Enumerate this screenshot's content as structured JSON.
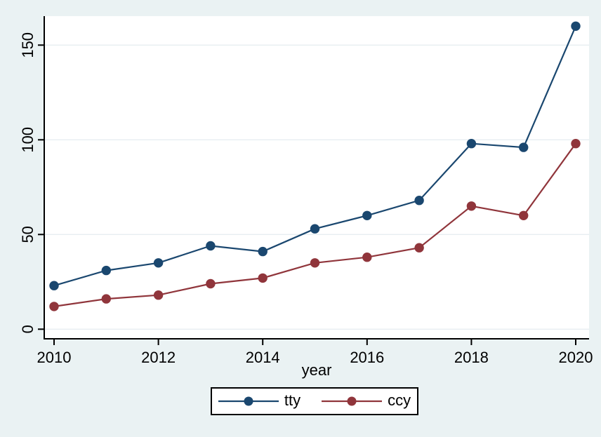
{
  "figure": {
    "background_color": "#eaf2f3",
    "plot_background_color": "#ffffff",
    "axis_color": "#000000",
    "grid_color": "#e7eef1",
    "text_color": "#000000"
  },
  "chart_data": {
    "type": "line",
    "title": "",
    "xlabel": "year",
    "ylabel": "",
    "x": [
      2010,
      2011,
      2012,
      2013,
      2014,
      2015,
      2016,
      2017,
      2018,
      2019,
      2020
    ],
    "series": [
      {
        "name": "tty",
        "color": "#1a476f",
        "values": [
          23,
          31,
          35,
          44,
          41,
          53,
          60,
          68,
          98,
          96,
          160
        ]
      },
      {
        "name": "ccy",
        "color": "#90353b",
        "values": [
          12,
          16,
          18,
          24,
          27,
          35,
          38,
          43,
          65,
          60,
          98
        ]
      }
    ],
    "x_ticks": [
      2010,
      2012,
      2014,
      2016,
      2018,
      2020
    ],
    "y_ticks": [
      0,
      50,
      100,
      150
    ],
    "ylim": [
      0,
      165
    ],
    "xlim": [
      2009.8,
      2020.25
    ],
    "grid": true,
    "legend": {
      "position": "bottom-center",
      "entries": [
        "tty",
        "ccy"
      ]
    }
  }
}
